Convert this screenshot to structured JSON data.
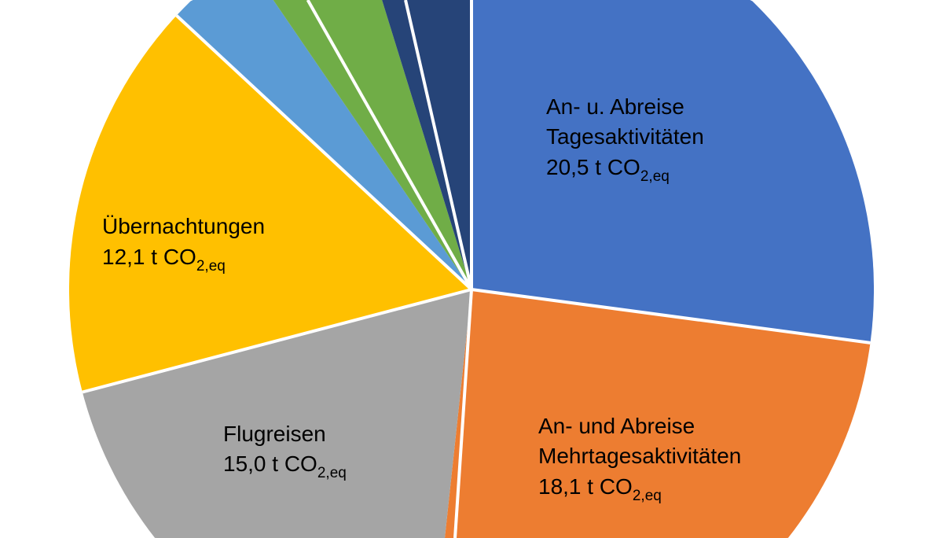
{
  "chart_data": {
    "type": "pie",
    "start": "top",
    "direction": "clockwise",
    "unit": "t CO2,eq",
    "slices": [
      {
        "value": 20.5,
        "color": "#4472C4",
        "label": {
          "lines": [
            "An- u. Abreise",
            "Tagesaktivitäten"
          ],
          "value_text": "20,5 t CO",
          "subscript": "2,eq"
        }
      },
      {
        "value": 18.1,
        "color": "#ED7D31",
        "label": {
          "lines": [
            "An- und Abreise",
            "Mehrtagesaktivitäten"
          ],
          "value_text": "18,1 t CO",
          "subscript": "2,eq"
        }
      },
      {
        "value": 15.0,
        "color": "#A5A5A5",
        "label": {
          "lines": [
            "Flugreisen"
          ],
          "value_text": "15,0 t CO",
          "subscript": "2,eq"
        }
      },
      {
        "value": 12.1,
        "color": "#FFC000",
        "label": {
          "lines": [
            "Übernachtungen"
          ],
          "value_text": "12,1 t CO",
          "subscript": "2,eq"
        }
      },
      {
        "value": 3.7,
        "color": "#5B9BD5"
      },
      {
        "value": 3.5,
        "color": "#70AD47"
      },
      {
        "value": 2.7,
        "color": "#264478"
      }
    ]
  }
}
